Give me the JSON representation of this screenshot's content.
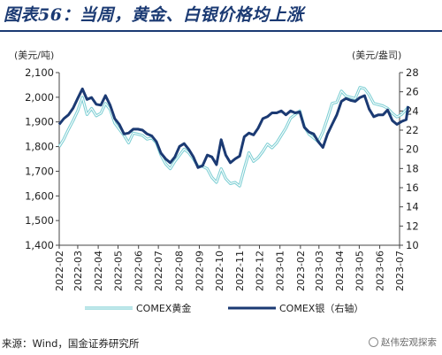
{
  "title": "图表56：当周，黄金、白银价格均上涨",
  "source": "来源：Wind，国金证券研究所",
  "watermark": "赵伟宏观探索",
  "colors": {
    "gold_series": "#7ecfd4",
    "silver_series": "#1b3a73",
    "axis": "#333333",
    "title": "#1b3a73"
  },
  "chart_data": {
    "type": "line",
    "left_axis": {
      "unit_label": "(美元/吨)",
      "ylim": [
        1400,
        2100
      ],
      "ticks": [
        1400,
        1500,
        1600,
        1700,
        1800,
        1900,
        2000,
        2100
      ]
    },
    "right_axis": {
      "unit_label": "(美元/盎司)",
      "ylim": [
        10,
        28
      ],
      "ticks": [
        10,
        12,
        14,
        16,
        18,
        20,
        22,
        24,
        26,
        28
      ]
    },
    "x_tick_labels": [
      "2022-02",
      "2022-03",
      "2022-04",
      "2022-05",
      "2022-06",
      "2022-07",
      "2022-08",
      "2022-09",
      "2022-10",
      "2022-11",
      "2022-12",
      "2023-01",
      "2023-02",
      "2023-03",
      "2023-04",
      "2023-05",
      "2023-06",
      "2023-07"
    ],
    "series": [
      {
        "name": "COMEX黄金",
        "axis": "left",
        "x": [
          "2022-02-01",
          "2022-02-08",
          "2022-02-15",
          "2022-02-22",
          "2022-03-01",
          "2022-03-08",
          "2022-03-15",
          "2022-03-22",
          "2022-03-29",
          "2022-04-05",
          "2022-04-12",
          "2022-04-19",
          "2022-04-26",
          "2022-05-03",
          "2022-05-10",
          "2022-05-17",
          "2022-05-24",
          "2022-05-31",
          "2022-06-07",
          "2022-06-14",
          "2022-06-21",
          "2022-06-28",
          "2022-07-05",
          "2022-07-12",
          "2022-07-19",
          "2022-07-26",
          "2022-08-02",
          "2022-08-09",
          "2022-08-16",
          "2022-08-23",
          "2022-08-30",
          "2022-09-06",
          "2022-09-13",
          "2022-09-20",
          "2022-09-27",
          "2022-10-04",
          "2022-10-11",
          "2022-10-18",
          "2022-10-25",
          "2022-11-01",
          "2022-11-08",
          "2022-11-15",
          "2022-11-22",
          "2022-11-29",
          "2022-12-06",
          "2022-12-13",
          "2022-12-20",
          "2022-12-27",
          "2023-01-03",
          "2023-01-10",
          "2023-01-17",
          "2023-01-24",
          "2023-01-31",
          "2023-02-07",
          "2023-02-14",
          "2023-02-21",
          "2023-02-28",
          "2023-03-07",
          "2023-03-14",
          "2023-03-21",
          "2023-03-28",
          "2023-04-04",
          "2023-04-11",
          "2023-04-18",
          "2023-04-25",
          "2023-05-02",
          "2023-05-09",
          "2023-05-16",
          "2023-05-23",
          "2023-05-30",
          "2023-06-06",
          "2023-06-13",
          "2023-06-20",
          "2023-06-27",
          "2023-07-04",
          "2023-07-11",
          "2023-07-14"
        ],
        "values": [
          1800,
          1830,
          1870,
          1905,
          1945,
          2000,
          1930,
          1955,
          1925,
          1935,
          1975,
          1950,
          1895,
          1870,
          1845,
          1815,
          1855,
          1850,
          1845,
          1830,
          1835,
          1815,
          1765,
          1730,
          1710,
          1740,
          1765,
          1790,
          1775,
          1750,
          1720,
          1720,
          1710,
          1675,
          1655,
          1710,
          1670,
          1650,
          1655,
          1640,
          1710,
          1775,
          1740,
          1755,
          1780,
          1810,
          1795,
          1815,
          1845,
          1875,
          1915,
          1930,
          1945,
          1880,
          1850,
          1835,
          1820,
          1860,
          1915,
          1975,
          1980,
          2025,
          2005,
          2000,
          1995,
          2040,
          2035,
          2010,
          1975,
          1970,
          1965,
          1955,
          1935,
          1920,
          1930,
          1950,
          1960
        ]
      },
      {
        "name": "COMEX银（右轴）",
        "axis": "right",
        "x": [
          "2022-02-01",
          "2022-02-08",
          "2022-02-15",
          "2022-02-22",
          "2022-03-01",
          "2022-03-08",
          "2022-03-15",
          "2022-03-22",
          "2022-03-29",
          "2022-04-05",
          "2022-04-12",
          "2022-04-19",
          "2022-04-26",
          "2022-05-03",
          "2022-05-10",
          "2022-05-17",
          "2022-05-24",
          "2022-05-31",
          "2022-06-07",
          "2022-06-14",
          "2022-06-21",
          "2022-06-28",
          "2022-07-05",
          "2022-07-12",
          "2022-07-19",
          "2022-07-26",
          "2022-08-02",
          "2022-08-09",
          "2022-08-16",
          "2022-08-23",
          "2022-08-30",
          "2022-09-06",
          "2022-09-13",
          "2022-09-20",
          "2022-09-27",
          "2022-10-04",
          "2022-10-11",
          "2022-10-18",
          "2022-10-25",
          "2022-11-01",
          "2022-11-08",
          "2022-11-15",
          "2022-11-22",
          "2022-11-29",
          "2022-12-06",
          "2022-12-13",
          "2022-12-20",
          "2022-12-27",
          "2023-01-03",
          "2023-01-10",
          "2023-01-17",
          "2023-01-24",
          "2023-01-31",
          "2023-02-07",
          "2023-02-14",
          "2023-02-21",
          "2023-02-28",
          "2023-03-07",
          "2023-03-14",
          "2023-03-21",
          "2023-03-28",
          "2023-04-04",
          "2023-04-11",
          "2023-04-18",
          "2023-04-25",
          "2023-05-02",
          "2023-05-09",
          "2023-05-16",
          "2023-05-23",
          "2023-05-30",
          "2023-06-06",
          "2023-06-13",
          "2023-06-20",
          "2023-06-27",
          "2023-07-04",
          "2023-07-11",
          "2023-07-14"
        ],
        "values": [
          22.6,
          23.2,
          23.6,
          24.3,
          25.3,
          26.3,
          25.2,
          25.4,
          24.7,
          24.6,
          25.6,
          24.6,
          23.2,
          22.6,
          21.6,
          21.7,
          22.1,
          22.1,
          22.0,
          21.6,
          21.4,
          20.8,
          19.6,
          19.0,
          18.6,
          19.2,
          20.3,
          20.6,
          20.0,
          19.2,
          18.1,
          18.3,
          19.4,
          19.2,
          18.4,
          21.0,
          19.4,
          18.6,
          19.0,
          19.3,
          21.3,
          21.7,
          21.5,
          22.2,
          23.2,
          23.4,
          23.8,
          23.8,
          24.0,
          23.6,
          24.0,
          23.8,
          23.9,
          22.3,
          21.8,
          21.6,
          20.8,
          20.2,
          21.6,
          22.6,
          23.6,
          25.0,
          25.3,
          25.1,
          25.0,
          25.4,
          25.6,
          24.2,
          23.4,
          23.6,
          23.6,
          24.1,
          23.0,
          22.6,
          22.9,
          23.1,
          24.5
        ]
      }
    ]
  }
}
